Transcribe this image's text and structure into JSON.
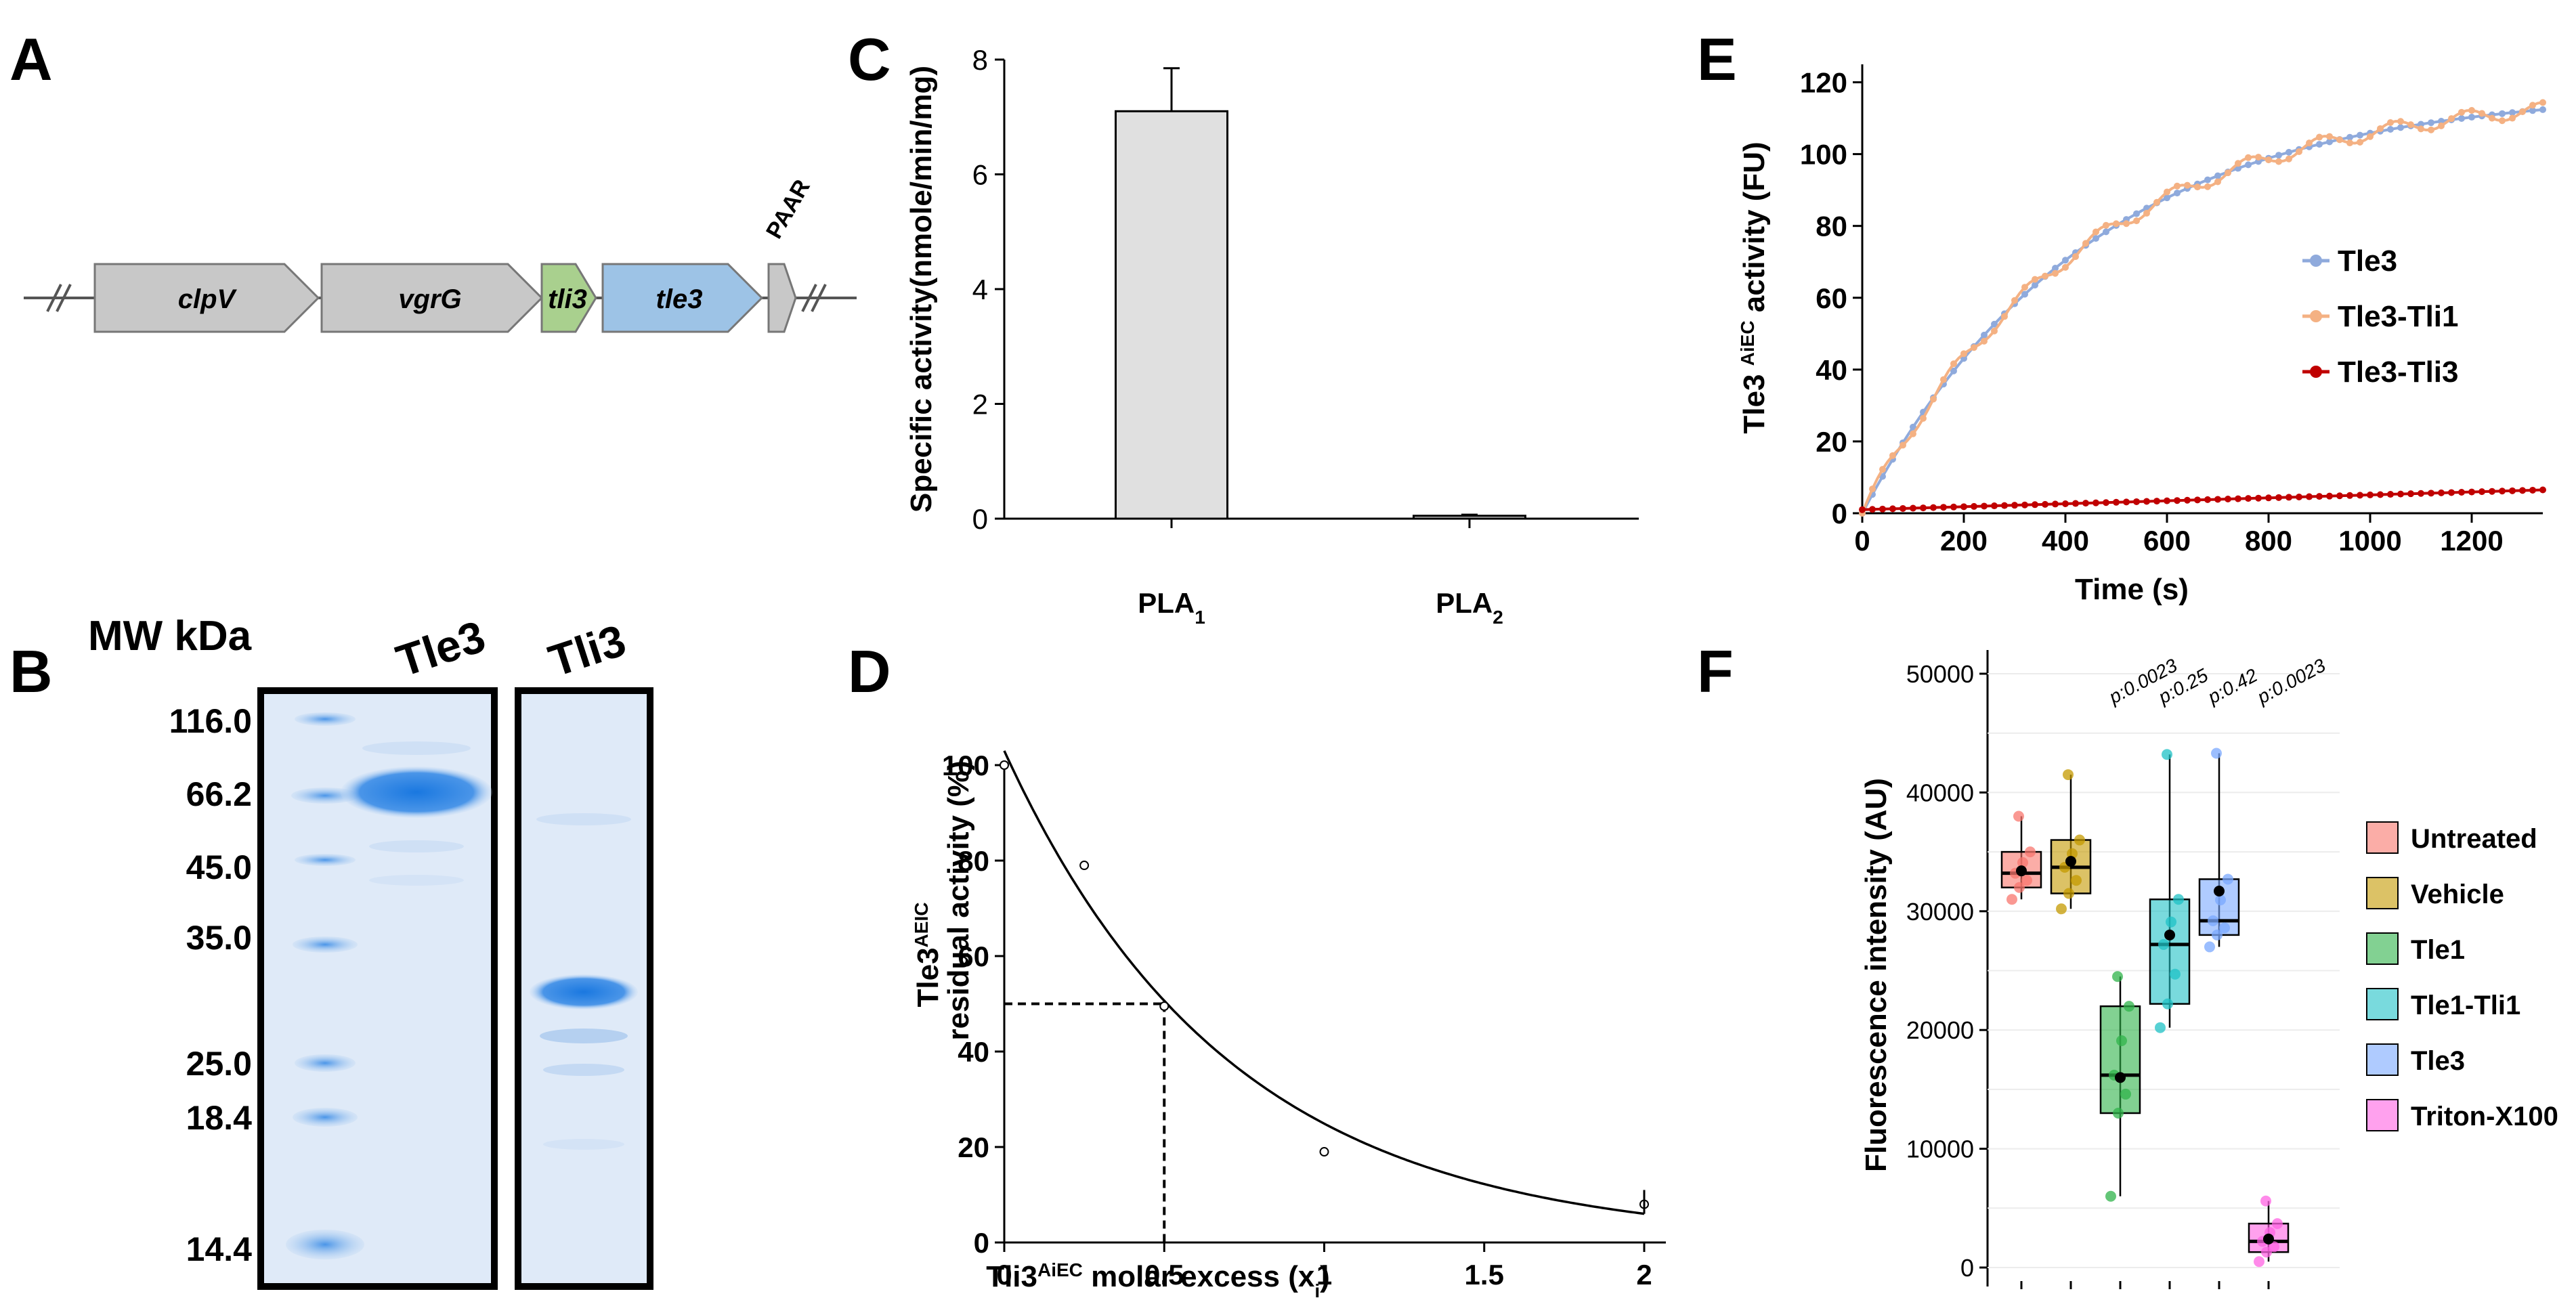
{
  "panels": {
    "A": "A",
    "B": "B",
    "C": "C",
    "D": "D",
    "E": "E",
    "F": "F"
  },
  "panel_a": {
    "genes": [
      {
        "name": "clpV",
        "color": "#c8c8c8"
      },
      {
        "name": "vgrG",
        "color": "#c8c8c8"
      },
      {
        "name": "tli3",
        "color": "#a9d08e"
      },
      {
        "name": "tle3",
        "color": "#9dc3e6"
      },
      {
        "name": "",
        "color": "#c8c8c8"
      }
    ],
    "paar_label": "PAAR"
  },
  "panel_b": {
    "header": "MW kDa",
    "lane_labels": [
      "Tle3",
      "Tli3"
    ],
    "markers": [
      "116.0",
      "66.2",
      "45.0",
      "35.0",
      "25.0",
      "18.4",
      "14.4"
    ]
  },
  "chart_data": [
    {
      "id": "C",
      "type": "bar",
      "categories": [
        "PLA1",
        "PLA2"
      ],
      "values": [
        7.1,
        0.05
      ],
      "errors": [
        0.75,
        0.02
      ],
      "ylabel": "Specific activity(nmole/min/mg)",
      "ylim": [
        0,
        8
      ],
      "yticks": [
        "0",
        "2",
        "4",
        "6",
        "8"
      ],
      "bar_color": "#e0e0e0",
      "xlabels": [
        {
          "main": "PLA",
          "sub": "1"
        },
        {
          "main": "PLA",
          "sub": "2"
        }
      ]
    },
    {
      "id": "D",
      "type": "scatter",
      "points": [
        {
          "x": 0,
          "y": 100
        },
        {
          "x": 0.25,
          "y": 79
        },
        {
          "x": 0.5,
          "y": 49.5
        },
        {
          "x": 1,
          "y": 19
        },
        {
          "x": 2,
          "y": 8
        }
      ],
      "fit": "exponential decay ~100*exp(-1.4x)",
      "ic50_x": 0.5,
      "ic50_y": 50,
      "ylabel_main": "Tle3",
      "ylabel_sup": "AEIC",
      "ylabel_line2": "residual activity (%)",
      "xlabel_main": "Tli3",
      "xlabel_sup": "AiEC",
      "xlabel_rest": " molar excess (x",
      "xlabel_sub": "i",
      "xlabel_end": ")",
      "xlim": [
        0,
        2
      ],
      "ylim": [
        0,
        100
      ],
      "xticks": [
        "0",
        "0.5",
        "1",
        "1.5",
        "2"
      ],
      "yticks": [
        "0",
        "20",
        "40",
        "60",
        "80",
        "100"
      ]
    },
    {
      "id": "E",
      "type": "line",
      "xlabel": "Time (s)",
      "ylabel_main": "Tle3 ",
      "ylabel_sup": "AiEC",
      "ylabel_rest": " activity (FU)",
      "xlim": [
        0,
        1340
      ],
      "ylim": [
        0,
        120
      ],
      "xticks": [
        "0",
        "200",
        "400",
        "600",
        "800",
        "1000",
        "1200"
      ],
      "yticks": [
        "0",
        "20",
        "40",
        "60",
        "80",
        "100",
        "120"
      ],
      "series": [
        {
          "name": "Tle3",
          "color": "#8faadc",
          "model": "118*(1-exp(-t/440))"
        },
        {
          "name": "Tle3-Tli1",
          "color": "#f4b183",
          "model": "118*(1-exp(-t/440))"
        },
        {
          "name": "Tle3-Tli3",
          "color": "#c00000",
          "model": "5.5*t/1340"
        }
      ]
    },
    {
      "id": "F",
      "type": "box",
      "ylabel": "Fluorescence intensity (AU)",
      "ylim": [
        0,
        50000
      ],
      "yticks": [
        "0",
        "10000",
        "20000",
        "30000",
        "40000",
        "50000"
      ],
      "groups": [
        {
          "name": "Untreated",
          "color": "#f8766d",
          "q1": 32000,
          "median": 33200,
          "q3": 35000,
          "min": 31000,
          "max": 38000,
          "mean": 33400,
          "p": ""
        },
        {
          "name": "Vehicle",
          "color": "#c49a00",
          "q1": 31500,
          "median": 33700,
          "q3": 36000,
          "min": 30200,
          "max": 41500,
          "mean": 34200,
          "p": ""
        },
        {
          "name": "Tle1",
          "color": "#2fb34a",
          "q1": 13000,
          "median": 16200,
          "q3": 22000,
          "min": 6000,
          "max": 24500,
          "mean": 16000,
          "p": "p:0.0023"
        },
        {
          "name": "Tle1-Tli1",
          "color": "#1fc1c6",
          "q1": 22200,
          "median": 27200,
          "q3": 31000,
          "min": 20200,
          "max": 43200,
          "mean": 28000,
          "p": "p:0.25"
        },
        {
          "name": "Tle3",
          "color": "#7aa8ff",
          "q1": 28000,
          "median": 29200,
          "q3": 32700,
          "min": 27000,
          "max": 43300,
          "mean": 31700,
          "p": "p:0.42"
        },
        {
          "name": "Triton-X100",
          "color": "#ff63e3",
          "q1": 1300,
          "median": 2200,
          "q3": 3700,
          "min": 500,
          "max": 5600,
          "mean": 2400,
          "p": "p:0.0023"
        }
      ]
    }
  ]
}
